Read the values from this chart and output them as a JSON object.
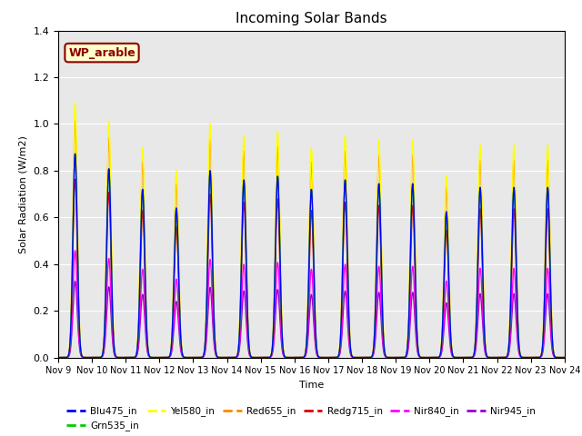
{
  "title": "Incoming Solar Bands",
  "xlabel": "Time",
  "ylabel": "Solar Radiation (W/m2)",
  "ylim": [
    0,
    1.4
  ],
  "yticks": [
    0.0,
    0.2,
    0.4,
    0.6,
    0.8,
    1.0,
    1.2,
    1.4
  ],
  "annotation": "WP_arable",
  "bg_color": "#e8e8e8",
  "series": [
    {
      "name": "Blu475_in",
      "color": "#0000ff",
      "lw": 1.0,
      "peak_scale": 0.8
    },
    {
      "name": "Grn535_in",
      "color": "#00cc00",
      "lw": 1.0,
      "peak_scale": 0.8
    },
    {
      "name": "Yel580_in",
      "color": "#ffff00",
      "lw": 1.0,
      "peak_scale": 1.0
    },
    {
      "name": "Red655_in",
      "color": "#ff8800",
      "lw": 1.0,
      "peak_scale": 0.93
    },
    {
      "name": "Redg715_in",
      "color": "#dd0000",
      "lw": 1.0,
      "peak_scale": 0.7
    },
    {
      "name": "Nir840_in",
      "color": "#ff00ff",
      "lw": 1.0,
      "peak_scale": 0.42
    },
    {
      "name": "Nir945_in",
      "color": "#9900cc",
      "lw": 1.0,
      "peak_scale": 0.3
    }
  ],
  "peak_heights": [
    1.09,
    1.01,
    0.9,
    0.8,
    1.0,
    0.95,
    0.97,
    0.9,
    0.95,
    0.93,
    0.93,
    0.78,
    0.91,
    0.91,
    0.91
  ],
  "days": 15,
  "tick_labels": [
    "Nov 9",
    "Nov 10",
    "Nov 11",
    "Nov 12",
    "Nov 13",
    "Nov 14",
    "Nov 15",
    "Nov 16",
    "Nov 17",
    "Nov 18",
    "Nov 19",
    "Nov 20",
    "Nov 21",
    "Nov 22",
    "Nov 23",
    "Nov 24"
  ]
}
